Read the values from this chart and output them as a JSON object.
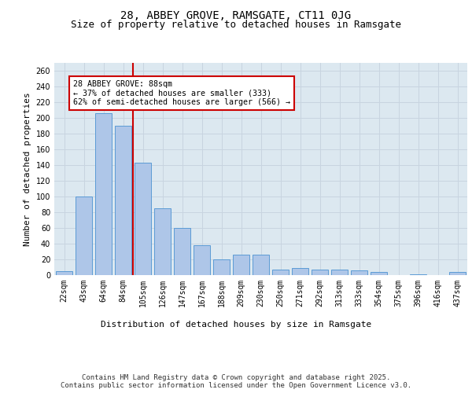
{
  "title1": "28, ABBEY GROVE, RAMSGATE, CT11 0JG",
  "title2": "Size of property relative to detached houses in Ramsgate",
  "xlabel": "Distribution of detached houses by size in Ramsgate",
  "ylabel": "Number of detached properties",
  "categories": [
    "22sqm",
    "43sqm",
    "64sqm",
    "84sqm",
    "105sqm",
    "126sqm",
    "147sqm",
    "167sqm",
    "188sqm",
    "209sqm",
    "230sqm",
    "250sqm",
    "271sqm",
    "292sqm",
    "313sqm",
    "333sqm",
    "354sqm",
    "375sqm",
    "396sqm",
    "416sqm",
    "437sqm"
  ],
  "values": [
    5,
    100,
    206,
    190,
    143,
    85,
    60,
    38,
    20,
    26,
    26,
    7,
    9,
    7,
    7,
    6,
    4,
    0,
    1,
    0,
    4
  ],
  "bar_color": "#aec6e8",
  "bar_edge_color": "#5b9bd5",
  "vline_color": "#cc0000",
  "annotation_box_text": "28 ABBEY GROVE: 88sqm\n← 37% of detached houses are smaller (333)\n62% of semi-detached houses are larger (566) →",
  "annotation_box_color": "#cc0000",
  "ylim": [
    0,
    270
  ],
  "yticks": [
    0,
    20,
    40,
    60,
    80,
    100,
    120,
    140,
    160,
    180,
    200,
    220,
    240,
    260
  ],
  "grid_color": "#c8d4e0",
  "bg_color": "#dce8f0",
  "footer_text": "Contains HM Land Registry data © Crown copyright and database right 2025.\nContains public sector information licensed under the Open Government Licence v3.0.",
  "title_fontsize": 10,
  "subtitle_fontsize": 9,
  "axis_label_fontsize": 8,
  "tick_fontsize": 7,
  "footer_fontsize": 6.5
}
